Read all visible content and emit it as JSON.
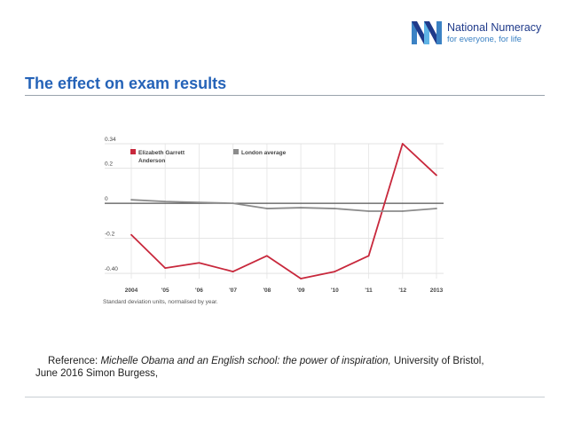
{
  "header": {
    "logo": {
      "name": "National Numeracy",
      "tagline": "for everyone, for life",
      "colors": {
        "primary": "#1f3a8a",
        "accent": "#3b82c4",
        "light": "#5fb4e6"
      }
    },
    "title": "The effect on exam results"
  },
  "reference": {
    "prefix": "Reference: ",
    "work": "Michelle Obama and an English school: the power of inspiration,",
    "suffix": " University of Bristol,",
    "line2": "June 2016 Simon Burgess,"
  },
  "chart_data": {
    "type": "line",
    "categories": [
      "2004",
      "'05",
      "'06",
      "'07",
      "'08",
      "'09",
      "'10",
      "'11",
      "'12",
      "2013"
    ],
    "series": [
      {
        "name": "Elizabeth Garrett Anderson",
        "color": "#c8283c",
        "values": [
          -0.18,
          -0.37,
          -0.34,
          -0.39,
          -0.3,
          -0.43,
          -0.39,
          -0.3,
          0.34,
          0.16
        ]
      },
      {
        "name": "London average",
        "color": "#8c8c8c",
        "values": [
          0.02,
          0.01,
          0.005,
          0.0,
          -0.03,
          -0.025,
          -0.03,
          -0.045,
          -0.045,
          -0.03
        ]
      }
    ],
    "reference_line": 0,
    "y_ticks": [
      {
        "value": 0.34,
        "label": "0.34"
      },
      {
        "value": 0.2,
        "label": "0.2"
      },
      {
        "value": 0,
        "label": "0"
      },
      {
        "value": -0.2,
        "label": "-0.2"
      },
      {
        "value": -0.4,
        "label": "-0.40"
      }
    ],
    "ylim": [
      -0.43,
      0.34
    ],
    "note": "Standard deviation units, normalised by year.",
    "grid": true,
    "legend_position": "top-left"
  }
}
